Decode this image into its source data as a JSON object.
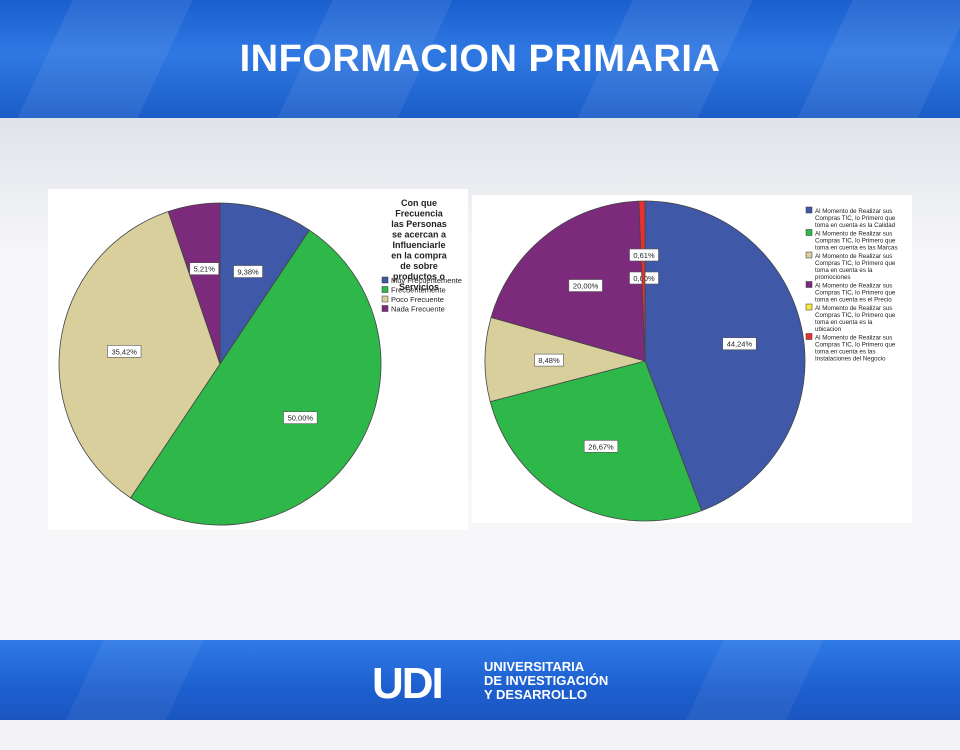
{
  "slide": {
    "title": "INFORMACION PRIMARIA",
    "footer": {
      "logo_mark": "UDI",
      "logo_lines": [
        "UNIVERSITARIA",
        "DE INVESTIGACIÓN",
        "Y DESARROLLO"
      ]
    }
  },
  "chart_data": [
    {
      "type": "pie",
      "title": "Con que Frecuencia las Personas se acercan a Influenciarle en la compra de sobre productos o Servicios",
      "legend_position": "top-right",
      "slices": [
        {
          "label": "Muy Frecuentemente",
          "value": 9.38,
          "value_label": "9,38%",
          "color": "#3f58a8"
        },
        {
          "label": "Frecuentemente",
          "value": 50.0,
          "value_label": "50,00%",
          "color": "#2fb84a"
        },
        {
          "label": "Poco Frecuente",
          "value": 35.42,
          "value_label": "35,42%",
          "color": "#d8cf9c"
        },
        {
          "label": "Nada Frecuente",
          "value": 5.21,
          "value_label": "5,21%",
          "color": "#7b2a7c"
        }
      ]
    },
    {
      "type": "pie",
      "title": "",
      "legend_position": "top-right",
      "slices": [
        {
          "label": "Al Momento de Realizar sus Compras TIC, lo Primero que toma en cuenta es la Calidad",
          "value": 44.24,
          "value_label": "44,24%",
          "color": "#3f58a8"
        },
        {
          "label": "Al Momento de Realizar sus Compras TIC, lo Primero que toma en cuenta es las Marcas",
          "value": 26.67,
          "value_label": "26,67%",
          "color": "#2fb84a"
        },
        {
          "label": "Al Momento de Realizar sus Compras TIC, lo Primero que toma en cuenta es la promociones",
          "value": 8.48,
          "value_label": "8,48%",
          "color": "#d8cf9c"
        },
        {
          "label": "Al Momento de Realizar sus Compras TIC, lo Primero que toma en cuenta es el Precio",
          "value": 20.0,
          "value_label": "20,00%",
          "color": "#7b2a7c"
        },
        {
          "label": "Al Momento de Realizar sus Compras TIC, lo Primero que toma en cuenta es la ubicacion",
          "value": 0.0,
          "value_label": "0,00%",
          "color": "#f5e642"
        },
        {
          "label": "Al Momento de Realizar sus Compras TIC, lo Primero que toma en cuenta es las Instalaciones del Negocio",
          "value": 0.61,
          "value_label": "0,61%",
          "color": "#e8312f"
        }
      ]
    }
  ]
}
